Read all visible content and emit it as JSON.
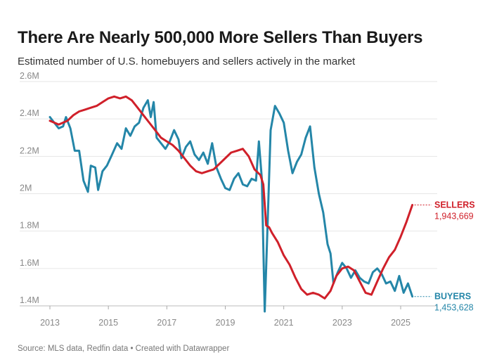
{
  "chart_data": {
    "type": "line",
    "title": "There Are Nearly 500,000 More Sellers Than Buyers",
    "subtitle": "Estimated number of U.S. homebuyers and sellers actively in the market",
    "footer": "Source: MLS data, Redfin data • Created with Datawrapper",
    "y_ticks": [
      "2.6M",
      "2.4M",
      "2.2M",
      "2M",
      "1.8M",
      "1.6M",
      "1.4M"
    ],
    "y_tick_values": [
      2.6,
      2.4,
      2.2,
      2.0,
      1.8,
      1.6,
      1.4
    ],
    "x_ticks": [
      "2013",
      "2015",
      "2017",
      "2019",
      "2021",
      "2023",
      "2025"
    ],
    "x_tick_values": [
      2013,
      2015,
      2017,
      2019,
      2021,
      2023,
      2025
    ],
    "xlim": [
      2013,
      2025.55
    ],
    "ylim": [
      1.4,
      2.6
    ],
    "grid": true,
    "series": [
      {
        "name": "SELLERS",
        "value_label": "1,943,669",
        "color": "#d0202a",
        "points": [
          [
            2013.0,
            2.39
          ],
          [
            2013.3,
            2.37
          ],
          [
            2013.6,
            2.39
          ],
          [
            2013.8,
            2.42
          ],
          [
            2014.0,
            2.44
          ],
          [
            2014.2,
            2.45
          ],
          [
            2014.4,
            2.46
          ],
          [
            2014.6,
            2.47
          ],
          [
            2014.8,
            2.49
          ],
          [
            2015.0,
            2.51
          ],
          [
            2015.2,
            2.52
          ],
          [
            2015.4,
            2.51
          ],
          [
            2015.6,
            2.52
          ],
          [
            2015.8,
            2.5
          ],
          [
            2016.0,
            2.46
          ],
          [
            2016.2,
            2.42
          ],
          [
            2016.4,
            2.38
          ],
          [
            2016.6,
            2.34
          ],
          [
            2016.8,
            2.3
          ],
          [
            2017.0,
            2.28
          ],
          [
            2017.2,
            2.26
          ],
          [
            2017.4,
            2.23
          ],
          [
            2017.6,
            2.19
          ],
          [
            2017.8,
            2.15
          ],
          [
            2018.0,
            2.12
          ],
          [
            2018.2,
            2.11
          ],
          [
            2018.4,
            2.12
          ],
          [
            2018.6,
            2.13
          ],
          [
            2018.8,
            2.16
          ],
          [
            2019.0,
            2.19
          ],
          [
            2019.2,
            2.22
          ],
          [
            2019.4,
            2.23
          ],
          [
            2019.6,
            2.24
          ],
          [
            2019.8,
            2.2
          ],
          [
            2020.0,
            2.13
          ],
          [
            2020.2,
            2.1
          ],
          [
            2020.3,
            2.05
          ],
          [
            2020.4,
            1.83
          ],
          [
            2020.5,
            1.82
          ],
          [
            2020.6,
            1.79
          ],
          [
            2020.8,
            1.74
          ],
          [
            2021.0,
            1.67
          ],
          [
            2021.2,
            1.62
          ],
          [
            2021.4,
            1.55
          ],
          [
            2021.6,
            1.49
          ],
          [
            2021.8,
            1.46
          ],
          [
            2022.0,
            1.47
          ],
          [
            2022.2,
            1.46
          ],
          [
            2022.4,
            1.44
          ],
          [
            2022.6,
            1.48
          ],
          [
            2022.8,
            1.56
          ],
          [
            2023.0,
            1.6
          ],
          [
            2023.2,
            1.61
          ],
          [
            2023.4,
            1.59
          ],
          [
            2023.6,
            1.53
          ],
          [
            2023.8,
            1.47
          ],
          [
            2024.0,
            1.46
          ],
          [
            2024.2,
            1.53
          ],
          [
            2024.4,
            1.6
          ],
          [
            2024.6,
            1.66
          ],
          [
            2024.8,
            1.7
          ],
          [
            2025.0,
            1.77
          ],
          [
            2025.2,
            1.85
          ],
          [
            2025.4,
            1.94
          ]
        ]
      },
      {
        "name": "BUYERS",
        "value_label": "1,453,628",
        "color": "#2486a8",
        "points": [
          [
            2013.0,
            2.41
          ],
          [
            2013.15,
            2.38
          ],
          [
            2013.3,
            2.35
          ],
          [
            2013.45,
            2.36
          ],
          [
            2013.55,
            2.41
          ],
          [
            2013.7,
            2.35
          ],
          [
            2013.85,
            2.23
          ],
          [
            2014.0,
            2.23
          ],
          [
            2014.15,
            2.07
          ],
          [
            2014.3,
            2.01
          ],
          [
            2014.4,
            2.15
          ],
          [
            2014.55,
            2.14
          ],
          [
            2014.65,
            2.02
          ],
          [
            2014.8,
            2.12
          ],
          [
            2014.95,
            2.15
          ],
          [
            2015.1,
            2.2
          ],
          [
            2015.3,
            2.27
          ],
          [
            2015.45,
            2.24
          ],
          [
            2015.6,
            2.35
          ],
          [
            2015.75,
            2.31
          ],
          [
            2015.9,
            2.36
          ],
          [
            2016.05,
            2.38
          ],
          [
            2016.2,
            2.46
          ],
          [
            2016.35,
            2.5
          ],
          [
            2016.45,
            2.41
          ],
          [
            2016.55,
            2.49
          ],
          [
            2016.65,
            2.3
          ],
          [
            2016.8,
            2.27
          ],
          [
            2016.95,
            2.24
          ],
          [
            2017.1,
            2.28
          ],
          [
            2017.25,
            2.34
          ],
          [
            2017.4,
            2.29
          ],
          [
            2017.5,
            2.19
          ],
          [
            2017.65,
            2.25
          ],
          [
            2017.8,
            2.28
          ],
          [
            2017.95,
            2.21
          ],
          [
            2018.1,
            2.18
          ],
          [
            2018.25,
            2.22
          ],
          [
            2018.4,
            2.16
          ],
          [
            2018.55,
            2.27
          ],
          [
            2018.7,
            2.14
          ],
          [
            2018.85,
            2.08
          ],
          [
            2019.0,
            2.03
          ],
          [
            2019.15,
            2.02
          ],
          [
            2019.3,
            2.08
          ],
          [
            2019.45,
            2.11
          ],
          [
            2019.6,
            2.05
          ],
          [
            2019.75,
            2.04
          ],
          [
            2019.9,
            2.08
          ],
          [
            2020.05,
            2.07
          ],
          [
            2020.15,
            2.28
          ],
          [
            2020.25,
            2.08
          ],
          [
            2020.35,
            1.37
          ],
          [
            2020.45,
            1.85
          ],
          [
            2020.55,
            2.34
          ],
          [
            2020.7,
            2.47
          ],
          [
            2020.85,
            2.43
          ],
          [
            2021.0,
            2.38
          ],
          [
            2021.15,
            2.23
          ],
          [
            2021.3,
            2.11
          ],
          [
            2021.45,
            2.17
          ],
          [
            2021.6,
            2.21
          ],
          [
            2021.75,
            2.3
          ],
          [
            2021.9,
            2.36
          ],
          [
            2022.05,
            2.14
          ],
          [
            2022.2,
            2.0
          ],
          [
            2022.35,
            1.9
          ],
          [
            2022.5,
            1.73
          ],
          [
            2022.6,
            1.68
          ],
          [
            2022.7,
            1.52
          ],
          [
            2022.85,
            1.58
          ],
          [
            2023.0,
            1.63
          ],
          [
            2023.15,
            1.6
          ],
          [
            2023.3,
            1.55
          ],
          [
            2023.45,
            1.59
          ],
          [
            2023.6,
            1.55
          ],
          [
            2023.75,
            1.53
          ],
          [
            2023.9,
            1.52
          ],
          [
            2024.05,
            1.58
          ],
          [
            2024.2,
            1.6
          ],
          [
            2024.35,
            1.57
          ],
          [
            2024.5,
            1.52
          ],
          [
            2024.65,
            1.53
          ],
          [
            2024.8,
            1.48
          ],
          [
            2024.95,
            1.56
          ],
          [
            2025.1,
            1.47
          ],
          [
            2025.25,
            1.52
          ],
          [
            2025.4,
            1.45
          ]
        ]
      }
    ]
  }
}
